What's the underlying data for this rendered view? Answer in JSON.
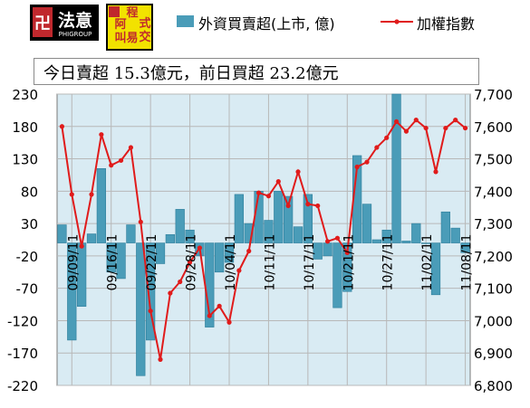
{
  "logos": {
    "left_text": "法意",
    "left_subtext": "PHIGROUP",
    "right_chars": [
      "程",
      "式",
      "阿",
      "交",
      "叫",
      "易"
    ]
  },
  "legend": {
    "bar_label": "外資買賣超(上市, 億)",
    "line_label": "加權指數"
  },
  "banner": "今日賣超 15.3億元，前日買超 23.2億元",
  "colors": {
    "bar": "#4a9cb8",
    "line": "#e01b1b",
    "plot_bg": "#d9ebf3",
    "grid": "#b8b8b8"
  },
  "chart_data": {
    "type": "bar",
    "series": [
      {
        "name": "外資買賣超(上市, 億)",
        "type": "bar",
        "axis": "left",
        "values": [
          28,
          -150,
          -98,
          14,
          115,
          -45,
          -55,
          28,
          -205,
          -150,
          -32,
          13,
          52,
          20,
          -20,
          -130,
          -45,
          -30,
          75,
          30,
          80,
          35,
          80,
          72,
          25,
          75,
          -25,
          -20,
          -100,
          -75,
          135,
          60,
          5,
          20,
          237,
          3,
          30,
          0,
          -80,
          48,
          23,
          -15
        ]
      },
      {
        "name": "加權指數",
        "type": "line",
        "axis": "right",
        "values": [
          7600,
          7390,
          7230,
          7390,
          7575,
          7480,
          7495,
          7535,
          7305,
          7030,
          6880,
          7085,
          7120,
          7180,
          7225,
          7015,
          7045,
          6995,
          7155,
          7215,
          7395,
          7385,
          7430,
          7355,
          7460,
          7360,
          7355,
          7245,
          7255,
          7210,
          7475,
          7490,
          7535,
          7565,
          7615,
          7585,
          7620,
          7595,
          7460,
          7595,
          7620,
          7595
        ]
      }
    ],
    "x_tick_labels": [
      "09/09/11",
      "09/16/11",
      "09/22/11",
      "09/28/11",
      "10/04/11",
      "10/11/11",
      "10/17/11",
      "10/21/11",
      "10/27/11",
      "11/02/11",
      "11/08/11"
    ],
    "x_tick_positions": [
      1,
      5,
      9,
      13,
      17,
      21,
      25,
      29,
      33,
      37,
      41
    ],
    "y_left": {
      "min": -220,
      "max": 230,
      "ticks": [
        230,
        180,
        130,
        80,
        30,
        -20,
        -70,
        -120,
        -170,
        -220
      ]
    },
    "y_right": {
      "min": 6800,
      "max": 7700,
      "ticks": [
        "7,700",
        "7,600",
        "7,500",
        "7,400",
        "7,300",
        "7,200",
        "7,100",
        "7,000",
        "6,900",
        "6,800"
      ]
    },
    "grid": true
  }
}
